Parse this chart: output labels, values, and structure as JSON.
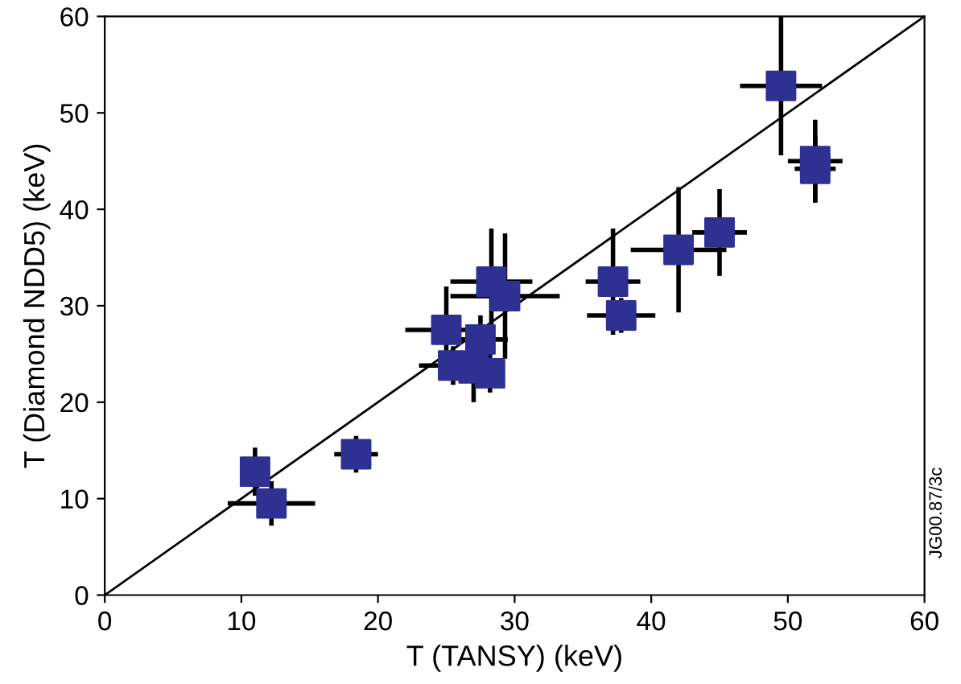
{
  "chart_data": {
    "type": "scatter",
    "xlabel": "T (TANSY) (keV)",
    "ylabel": "T (Diamond NDD5) (keV)",
    "xlim": [
      0,
      60
    ],
    "ylim": [
      0,
      60
    ],
    "xticks": [
      0,
      10,
      20,
      30,
      40,
      50,
      60
    ],
    "yticks": [
      0,
      10,
      20,
      30,
      40,
      50,
      60
    ],
    "grid": false,
    "annotations": [
      "JG00.87/3c"
    ],
    "series": [
      {
        "type": "line",
        "color": "#000000",
        "x": [
          0,
          60
        ],
        "values": [
          0,
          60
        ],
        "marker": "none",
        "line_style": "solid"
      },
      {
        "color": "#2e3192",
        "marker": "square",
        "x": [
          11,
          12.2,
          18.4,
          25,
          25.5,
          27.5,
          27,
          28.2,
          28.3,
          29.3,
          37.2,
          37.8,
          42,
          45,
          49.5,
          52,
          52
        ],
        "values": [
          12.8,
          9.5,
          14.6,
          27.5,
          23.8,
          26.5,
          23.5,
          23,
          32.5,
          31,
          32.5,
          29,
          35.8,
          37.6,
          52.8,
          45,
          44.2
        ],
        "xerrors": [
          null,
          3.2,
          1.6,
          3,
          2.5,
          2,
          null,
          null,
          3,
          4,
          2,
          2.5,
          3.5,
          2,
          3,
          2,
          1.5
        ],
        "errors": [
          2.5,
          2.3,
          1.9,
          4.5,
          2,
          2.5,
          3.5,
          2,
          5.5,
          6.5,
          5.5,
          1.8,
          6.5,
          4.5,
          7.2,
          4.3,
          3.5
        ]
      }
    ]
  }
}
